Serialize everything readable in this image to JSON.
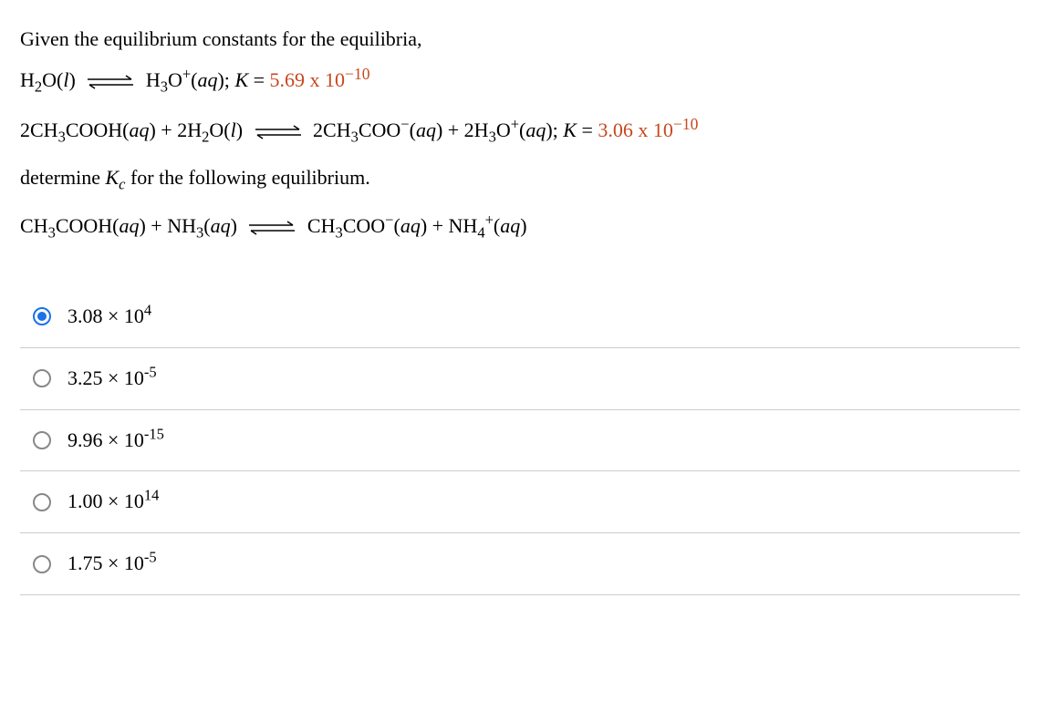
{
  "question": {
    "intro": "Given the equilibrium constants for the equilibria,",
    "eq1_left": "H₂O(l)",
    "eq1_right": "H₃O⁺(aq);",
    "eq1_Kprefix": "K =",
    "eq1_Kval": "5.69 x 10",
    "eq1_Kexp": "−10",
    "eq2_left": "2CH₃COOH(aq) + 2H₂O(l)",
    "eq2_right": "2CH₃COO⁻(aq) + 2H₃O⁺(aq);",
    "eq2_Kprefix": "K =",
    "eq2_Kval": "3.06 x 10",
    "eq2_Kexp": "−10",
    "determine": "determine Kc for the following equilibrium.",
    "eq3_left": "CH₃COOH(aq) + NH₃(aq)",
    "eq3_right": "CH₃COO⁻(aq) + NH₄⁺(aq)"
  },
  "options": [
    {
      "base": "3.08 × 10",
      "exp": "4",
      "selected": true
    },
    {
      "base": "3.25 × 10",
      "exp": "-5",
      "selected": false
    },
    {
      "base": "9.96 × 10",
      "exp": "-15",
      "selected": false
    },
    {
      "base": "1.00 × 10",
      "exp": "14",
      "selected": false
    },
    {
      "base": "1.75 × 10",
      "exp": "-5",
      "selected": false
    }
  ],
  "colors": {
    "k_value": "#c7481e",
    "radio_selected": "#1a73e8",
    "divider": "#cccccc"
  }
}
